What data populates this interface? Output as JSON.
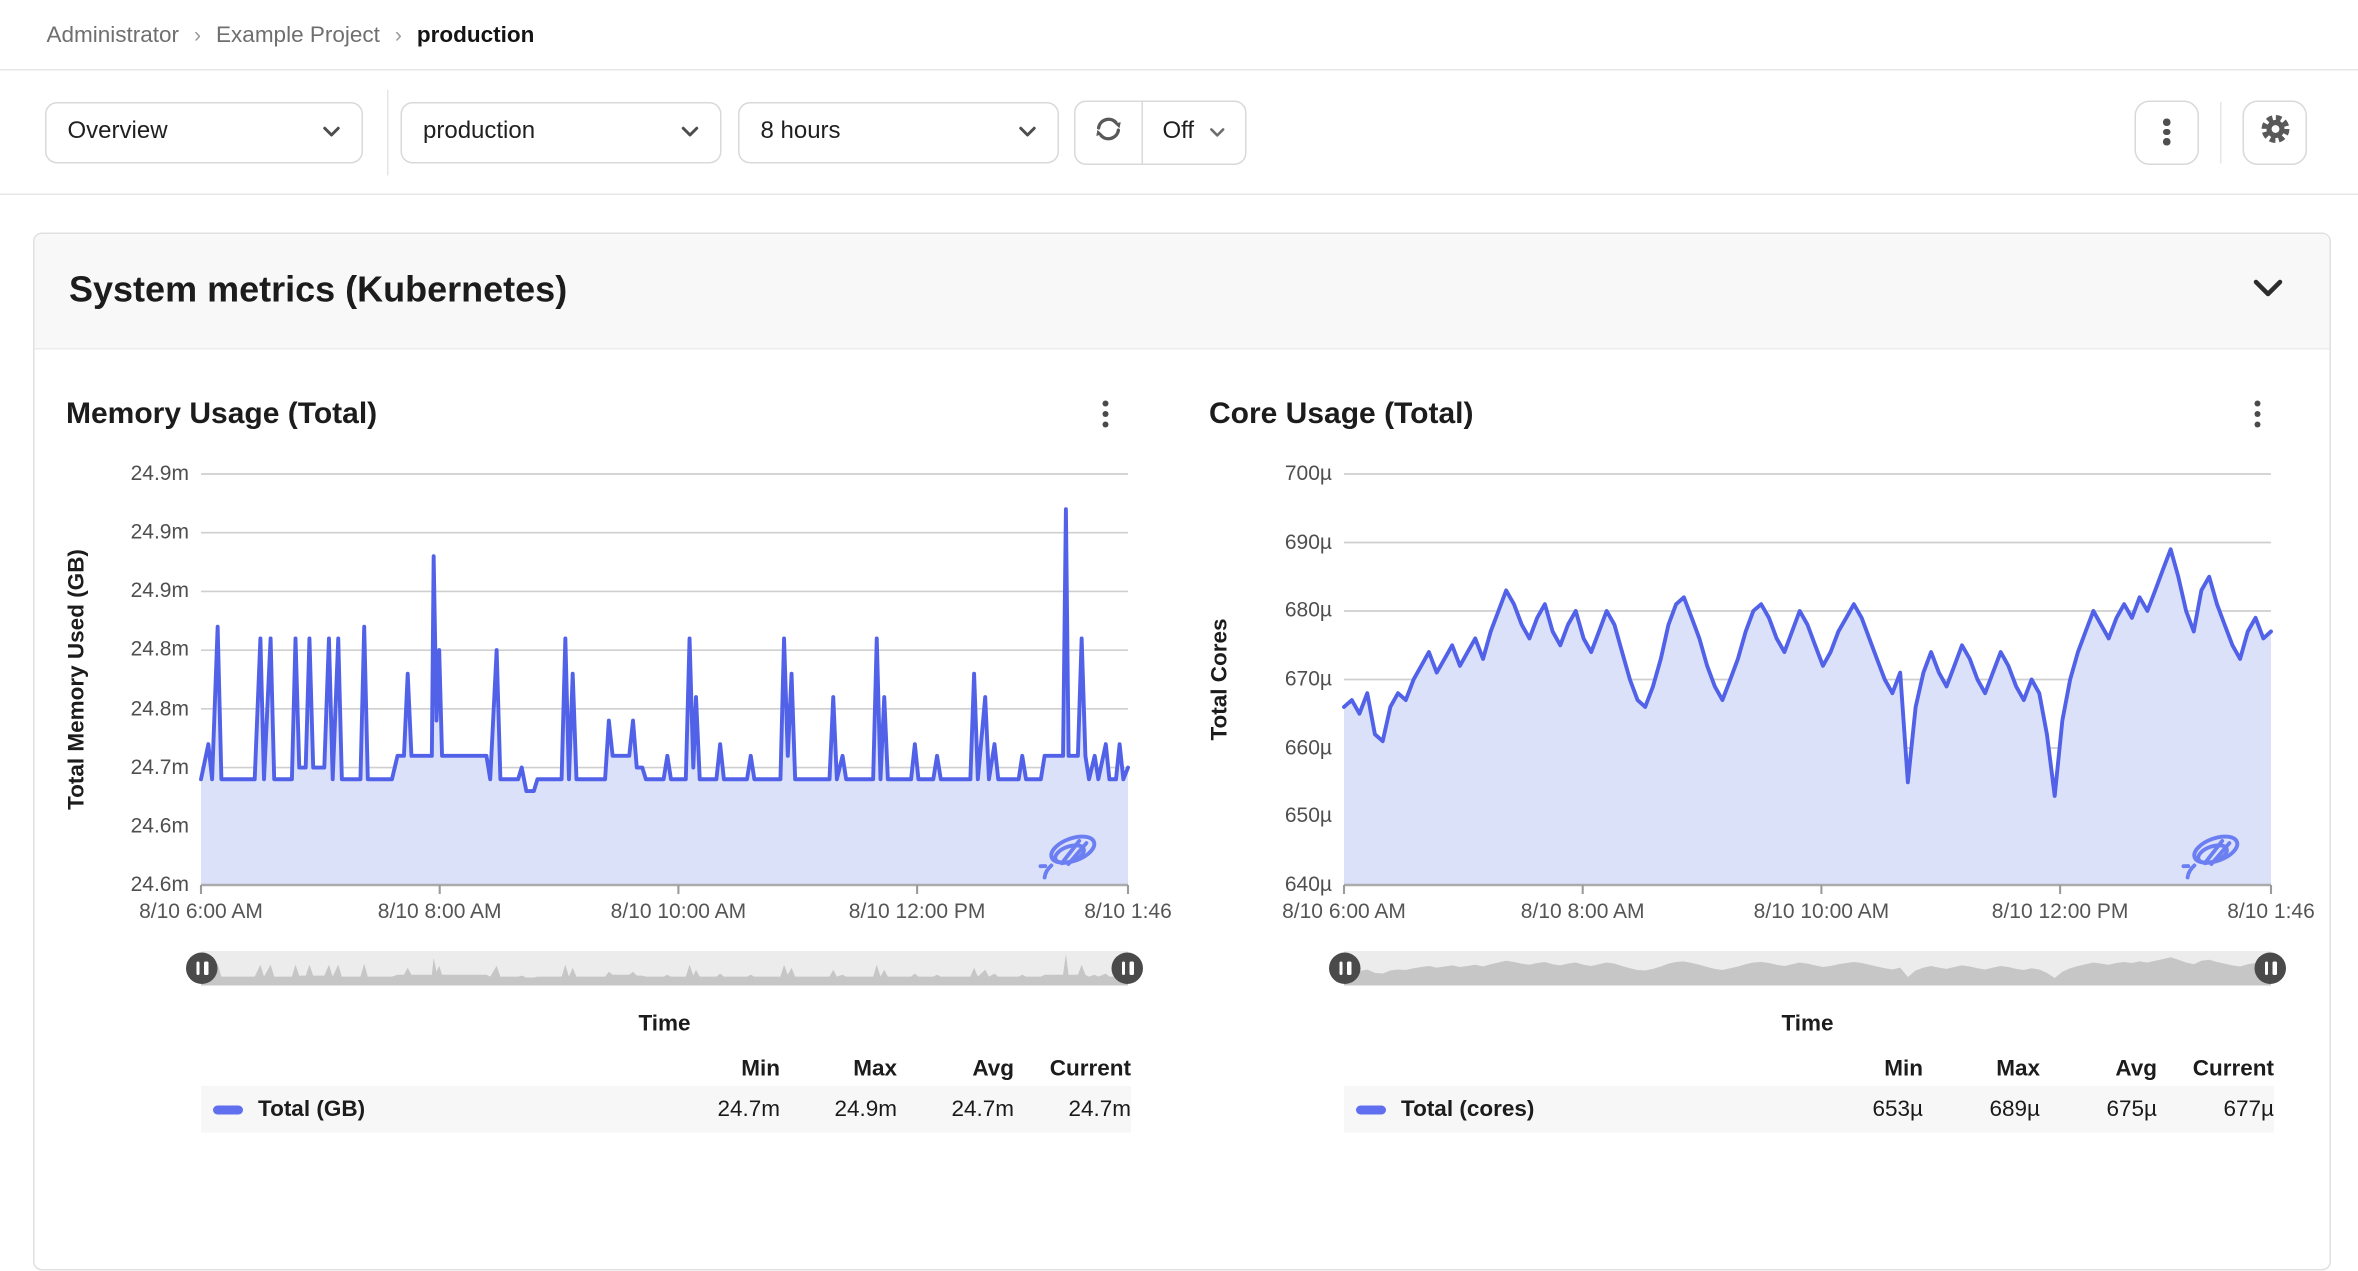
{
  "breadcrumb": {
    "items": [
      "Administrator",
      "Example Project",
      "production"
    ],
    "separator": "›"
  },
  "toolbar": {
    "view_select": {
      "value": "Overview"
    },
    "project_select": {
      "value": "production"
    },
    "range_select": {
      "value": "8 hours"
    },
    "refresh": {
      "mode": "Off"
    }
  },
  "section": {
    "title": "System metrics (Kubernetes)"
  },
  "legend": {
    "headers": [
      "Min",
      "Max",
      "Avg",
      "Current"
    ]
  },
  "colors": {
    "accent_line": "#5162e8",
    "accent_fill": "#dce1fa",
    "legend_swatch": "#5f6fef",
    "brush_track": "#ececec",
    "brush_area": "#c6c6c6",
    "gridline": "#cfcfcf",
    "card_header_bg": "#f8f8f8",
    "border": "#e0e0e0"
  },
  "chart_data": [
    {
      "type": "area",
      "title": "Memory Usage (Total)",
      "ylabel": "Total Memory Used (GB)",
      "xlabel": "Time",
      "ylim": [
        24.6,
        24.95
      ],
      "y_tick_labels": [
        "24.9m",
        "24.9m",
        "24.9m",
        "24.8m",
        "24.8m",
        "24.7m",
        "24.6m",
        "24.6m"
      ],
      "x_tick_labels": [
        "8/10 6:00 AM",
        "8/10 8:00 AM",
        "8/10 10:00 AM",
        "8/10 12:00 PM",
        "8/10 1:46"
      ],
      "x_tick_pos": [
        0,
        0.2575,
        0.515,
        0.7725,
        1
      ],
      "series": [
        {
          "name": "Total (GB)",
          "points": [
            [
              0,
              24.69
            ],
            [
              0.8,
              24.72
            ],
            [
              1.2,
              24.69
            ],
            [
              1.8,
              24.82
            ],
            [
              2.2,
              24.69
            ],
            [
              5.8,
              24.69
            ],
            [
              6.4,
              24.81
            ],
            [
              6.8,
              24.69
            ],
            [
              7.5,
              24.81
            ],
            [
              7.9,
              24.69
            ],
            [
              9.8,
              24.69
            ],
            [
              10.2,
              24.81
            ],
            [
              10.6,
              24.7
            ],
            [
              11.3,
              24.7
            ],
            [
              11.7,
              24.81
            ],
            [
              12.1,
              24.7
            ],
            [
              13.3,
              24.7
            ],
            [
              13.8,
              24.81
            ],
            [
              14.2,
              24.69
            ],
            [
              14.8,
              24.81
            ],
            [
              15.2,
              24.69
            ],
            [
              17.2,
              24.69
            ],
            [
              17.6,
              24.82
            ],
            [
              18.0,
              24.69
            ],
            [
              20.6,
              24.69
            ],
            [
              21.2,
              24.71
            ],
            [
              21.9,
              24.71
            ],
            [
              22.3,
              24.78
            ],
            [
              22.7,
              24.71
            ],
            [
              24.2,
              24.71
            ],
            [
              24.9,
              24.71
            ],
            [
              25.1,
              24.88
            ],
            [
              25.4,
              24.74
            ],
            [
              25.7,
              24.8
            ],
            [
              26.0,
              24.71
            ],
            [
              30.8,
              24.71
            ],
            [
              31.2,
              24.69
            ],
            [
              31.9,
              24.8
            ],
            [
              32.3,
              24.69
            ],
            [
              34.2,
              24.69
            ],
            [
              34.6,
              24.7
            ],
            [
              35.1,
              24.68
            ],
            [
              35.9,
              24.68
            ],
            [
              36.3,
              24.69
            ],
            [
              38.9,
              24.69
            ],
            [
              39.3,
              24.81
            ],
            [
              39.7,
              24.69
            ],
            [
              40.1,
              24.78
            ],
            [
              40.5,
              24.69
            ],
            [
              43.6,
              24.69
            ],
            [
              44.0,
              24.74
            ],
            [
              44.4,
              24.71
            ],
            [
              46.2,
              24.71
            ],
            [
              46.6,
              24.74
            ],
            [
              47.0,
              24.7
            ],
            [
              47.6,
              24.7
            ],
            [
              48.0,
              24.69
            ],
            [
              49.9,
              24.69
            ],
            [
              50.3,
              24.71
            ],
            [
              50.7,
              24.69
            ],
            [
              52.3,
              24.69
            ],
            [
              52.7,
              24.81
            ],
            [
              53.1,
              24.7
            ],
            [
              53.4,
              24.76
            ],
            [
              53.8,
              24.69
            ],
            [
              55.6,
              24.69
            ],
            [
              56.0,
              24.72
            ],
            [
              56.4,
              24.69
            ],
            [
              58.9,
              24.69
            ],
            [
              59.3,
              24.71
            ],
            [
              59.7,
              24.69
            ],
            [
              62.5,
              24.69
            ],
            [
              62.9,
              24.81
            ],
            [
              63.3,
              24.71
            ],
            [
              63.7,
              24.78
            ],
            [
              64.1,
              24.69
            ],
            [
              67.8,
              24.69
            ],
            [
              68.2,
              24.76
            ],
            [
              68.6,
              24.69
            ],
            [
              69.2,
              24.71
            ],
            [
              69.6,
              24.69
            ],
            [
              72.5,
              24.69
            ],
            [
              72.9,
              24.81
            ],
            [
              73.3,
              24.69
            ],
            [
              73.7,
              24.76
            ],
            [
              74.1,
              24.69
            ],
            [
              76.6,
              24.69
            ],
            [
              77.0,
              24.72
            ],
            [
              77.4,
              24.69
            ],
            [
              79.0,
              24.69
            ],
            [
              79.4,
              24.71
            ],
            [
              79.8,
              24.69
            ],
            [
              83.0,
              24.69
            ],
            [
              83.4,
              24.78
            ],
            [
              83.8,
              24.69
            ],
            [
              84.6,
              24.76
            ],
            [
              85.0,
              24.69
            ],
            [
              85.6,
              24.72
            ],
            [
              86.0,
              24.69
            ],
            [
              88.2,
              24.69
            ],
            [
              88.6,
              24.71
            ],
            [
              89.0,
              24.69
            ],
            [
              90.6,
              24.69
            ],
            [
              91.0,
              24.71
            ],
            [
              93.0,
              24.71
            ],
            [
              93.3,
              24.92
            ],
            [
              93.6,
              24.71
            ],
            [
              94.6,
              24.71
            ],
            [
              95.0,
              24.81
            ],
            [
              95.4,
              24.71
            ],
            [
              95.8,
              24.69
            ],
            [
              96.4,
              24.71
            ],
            [
              96.8,
              24.69
            ],
            [
              97.6,
              24.72
            ],
            [
              98.0,
              24.69
            ],
            [
              98.7,
              24.69
            ],
            [
              99.1,
              24.72
            ],
            [
              99.5,
              24.69
            ],
            [
              100,
              24.7
            ]
          ]
        }
      ],
      "stats": {
        "min": "24.7m",
        "max": "24.9m",
        "avg": "24.7m",
        "current": "24.7m"
      }
    },
    {
      "type": "area",
      "title": "Core Usage (Total)",
      "ylabel": "Total Cores",
      "xlabel": "Time",
      "ylim": [
        640,
        700
      ],
      "y_tick_labels": [
        "700µ",
        "690µ",
        "680µ",
        "670µ",
        "660µ",
        "650µ",
        "640µ"
      ],
      "x_tick_labels": [
        "8/10 6:00 AM",
        "8/10 8:00 AM",
        "8/10 10:00 AM",
        "8/10 12:00 PM",
        "8/10 1:46"
      ],
      "x_tick_pos": [
        0,
        0.2575,
        0.515,
        0.7725,
        1
      ],
      "series": [
        {
          "name": "Total (cores)",
          "values": [
            666,
            667,
            665,
            668,
            662,
            661,
            666,
            668,
            667,
            670,
            672,
            674,
            671,
            673,
            675,
            672,
            674,
            676,
            673,
            677,
            680,
            683,
            681,
            678,
            676,
            679,
            681,
            677,
            675,
            678,
            680,
            676,
            674,
            677,
            680,
            678,
            674,
            670,
            667,
            666,
            669,
            673,
            678,
            681,
            682,
            679,
            676,
            672,
            669,
            667,
            670,
            673,
            677,
            680,
            681,
            679,
            676,
            674,
            677,
            680,
            678,
            675,
            672,
            674,
            677,
            679,
            681,
            679,
            676,
            673,
            670,
            668,
            671,
            655,
            666,
            671,
            674,
            671,
            669,
            672,
            675,
            673,
            670,
            668,
            671,
            674,
            672,
            669,
            667,
            670,
            668,
            662,
            653,
            664,
            670,
            674,
            677,
            680,
            678,
            676,
            679,
            681,
            679,
            682,
            680,
            683,
            686,
            689,
            685,
            680,
            677,
            683,
            685,
            681,
            678,
            675,
            673,
            677,
            679,
            676,
            677
          ]
        }
      ],
      "stats": {
        "min": "653µ",
        "max": "689µ",
        "avg": "675µ",
        "current": "677µ"
      }
    }
  ]
}
